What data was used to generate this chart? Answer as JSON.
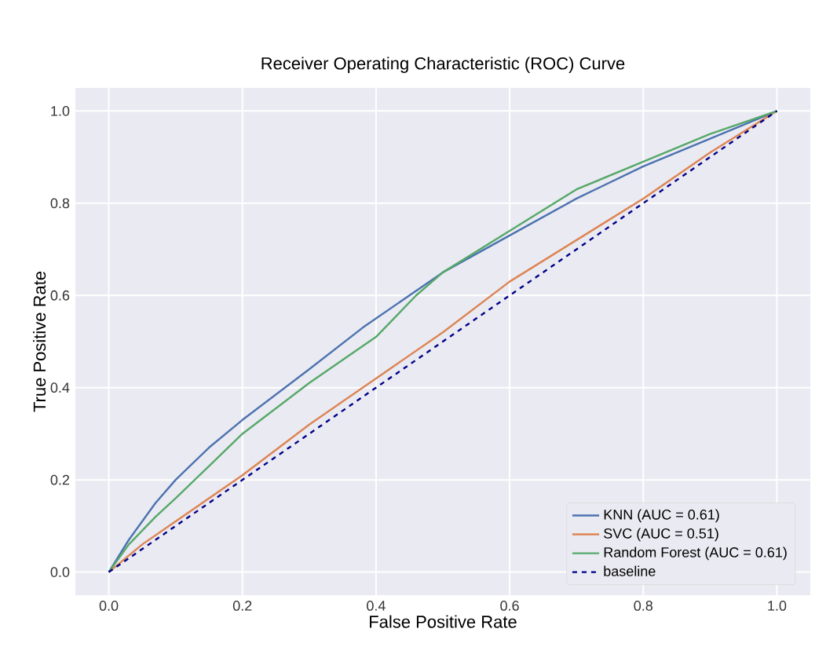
{
  "chart_data": {
    "type": "line",
    "title": "Receiver Operating Characteristic (ROC) Curve",
    "xlabel": "False Positive Rate",
    "ylabel": "True Positive Rate",
    "xlim": [
      -0.05,
      1.05
    ],
    "ylim": [
      -0.05,
      1.05
    ],
    "xticks": [
      {
        "value": 0,
        "label": "0.0"
      },
      0.2,
      0.4,
      0.6,
      0.8,
      {
        "value": 1,
        "label": "1.0"
      }
    ],
    "yticks": [
      {
        "value": 0,
        "label": "0.0"
      },
      0.2,
      0.4,
      0.6,
      0.8,
      {
        "value": 1,
        "label": "1.0"
      }
    ],
    "grid": true,
    "legend": "bottom right",
    "line_style": "solid",
    "series": [
      {
        "name": "KNN (AUC = 0.61)",
        "color": "#4c72b0",
        "x": [
          0,
          0.03,
          0.07,
          0.1,
          0.15,
          0.2,
          0.3,
          0.38,
          0.45,
          0.5,
          0.6,
          0.7,
          0.8,
          0.9,
          1
        ],
        "values": [
          0,
          0.07,
          0.15,
          0.2,
          0.27,
          0.33,
          0.44,
          0.53,
          0.6,
          0.65,
          0.73,
          0.81,
          0.88,
          0.94,
          1
        ]
      },
      {
        "name": "SVC (AUC = 0.51)",
        "color": "#dd8452",
        "x": [
          0,
          0.05,
          0.1,
          0.2,
          0.3,
          0.4,
          0.5,
          0.6,
          0.7,
          0.8,
          0.9,
          1
        ],
        "values": [
          0,
          0.06,
          0.11,
          0.21,
          0.32,
          0.42,
          0.52,
          0.63,
          0.72,
          0.81,
          0.91,
          1
        ]
      },
      {
        "name": "Random Forest (AUC = 0.61)",
        "color": "#55a868",
        "x": [
          0,
          0.03,
          0.07,
          0.1,
          0.15,
          0.2,
          0.3,
          0.4,
          0.46,
          0.5,
          0.6,
          0.7,
          0.8,
          0.9,
          1
        ],
        "values": [
          0,
          0.06,
          0.12,
          0.16,
          0.23,
          0.3,
          0.41,
          0.51,
          0.6,
          0.65,
          0.74,
          0.83,
          0.89,
          0.95,
          1
        ]
      },
      {
        "name": "baseline",
        "color": "#00008b",
        "line_style": "dashed",
        "x": [
          0,
          1
        ],
        "values": [
          0,
          1
        ]
      }
    ]
  }
}
